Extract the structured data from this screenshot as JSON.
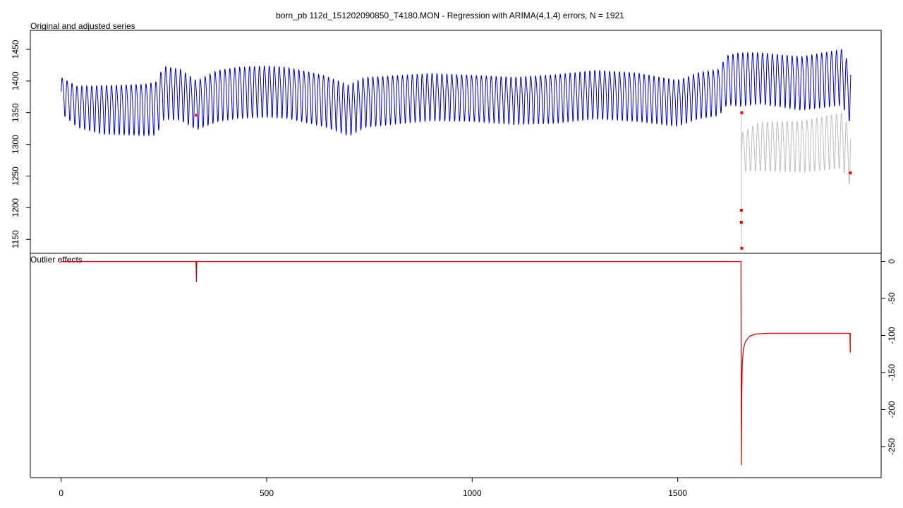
{
  "title": "born_pb 112d_151202090850_T4180.MON - Regression with ARIMA(4,1,4) errors, N = 1921",
  "chart_data": [
    {
      "id": "top",
      "type": "line",
      "title": "Original and adjusted series",
      "xlim": [
        -75,
        1995
      ],
      "ylim": [
        1128,
        1480
      ],
      "y_ticks": [
        1150,
        1200,
        1250,
        1300,
        1350,
        1400,
        1450
      ],
      "y_tick_labels": [
        "1150",
        "1200",
        "1250",
        "1300",
        "1350",
        "1400",
        "1450"
      ],
      "grid": false,
      "series": [
        {
          "role": "original",
          "color": "#0000cc",
          "period": 12,
          "amplitude_points": [
            [
              0,
              28
            ],
            [
              100,
              38
            ],
            [
              200,
              40
            ],
            [
              240,
              42
            ],
            [
              330,
              38
            ],
            [
              380,
              40
            ],
            [
              500,
              40
            ],
            [
              620,
              40
            ],
            [
              700,
              40
            ],
            [
              800,
              38
            ],
            [
              1000,
              36
            ],
            [
              1200,
              38
            ],
            [
              1400,
              38
            ],
            [
              1500,
              36
            ],
            [
              1600,
              36
            ],
            [
              1650,
              42
            ],
            [
              1700,
              40
            ],
            [
              1921,
              44
            ]
          ],
          "level_points": [
            [
              0,
              1380
            ],
            [
              40,
              1362
            ],
            [
              100,
              1358
            ],
            [
              200,
              1358
            ],
            [
              230,
              1360
            ],
            [
              250,
              1385
            ],
            [
              290,
              1382
            ],
            [
              330,
              1365
            ],
            [
              380,
              1380
            ],
            [
              430,
              1385
            ],
            [
              500,
              1387
            ],
            [
              550,
              1385
            ],
            [
              640,
              1372
            ],
            [
              700,
              1357
            ],
            [
              740,
              1370
            ],
            [
              800,
              1373
            ],
            [
              900,
              1378
            ],
            [
              1000,
              1376
            ],
            [
              1100,
              1372
            ],
            [
              1200,
              1375
            ],
            [
              1300,
              1382
            ],
            [
              1400,
              1378
            ],
            [
              1500,
              1368
            ],
            [
              1550,
              1380
            ],
            [
              1600,
              1385
            ],
            [
              1620,
              1405
            ],
            [
              1700,
              1408
            ],
            [
              1800,
              1400
            ],
            [
              1900,
              1410
            ],
            [
              1921,
              1380
            ]
          ]
        },
        {
          "role": "adjusted",
          "color": "#bebebe",
          "start": 1655,
          "end": 1921,
          "period": 12,
          "amplitude_points": [
            [
              1655,
              30
            ],
            [
              1700,
              38
            ],
            [
              1800,
              40
            ],
            [
              1921,
              44
            ]
          ],
          "level_points": [
            [
              1655,
              1290
            ],
            [
              1700,
              1300
            ],
            [
              1800,
              1300
            ],
            [
              1900,
              1310
            ],
            [
              1921,
              1280
            ]
          ]
        }
      ],
      "outlier_markers": [
        {
          "x": 329,
          "y": 1346
        },
        {
          "x": 1656,
          "y": 1350
        },
        {
          "x": 1655,
          "y": 1196
        },
        {
          "x": 1655,
          "y": 1177
        },
        {
          "x": 1656,
          "y": 1136
        },
        {
          "x": 1920,
          "y": 1255
        }
      ]
    },
    {
      "id": "bottom",
      "type": "line",
      "title": "Outlier effects",
      "xlim": [
        -75,
        1995
      ],
      "ylim": [
        -292,
        11
      ],
      "x_ticks": [
        0,
        500,
        1000,
        1500
      ],
      "x_tick_labels": [
        "0",
        "500",
        "1000",
        "1500"
      ],
      "y_ticks": [
        0,
        -50,
        -100,
        -150,
        -200,
        -250
      ],
      "y_tick_labels": [
        "0",
        "-50",
        "-100",
        "-150",
        "-200",
        "-250"
      ],
      "grid": false,
      "series": [
        {
          "role": "outlier-effects",
          "color": "#cc0000",
          "points": [
            [
              0,
              0
            ],
            [
              328,
              0
            ],
            [
              329,
              -28
            ],
            [
              330,
              0
            ],
            [
              1654,
              0
            ],
            [
              1654,
              -15
            ],
            [
              1655,
              -275
            ],
            [
              1656,
              -180
            ],
            [
              1657,
              -140
            ],
            [
              1660,
              -118
            ],
            [
              1665,
              -108
            ],
            [
              1675,
              -101
            ],
            [
              1690,
              -98
            ],
            [
              1720,
              -97
            ],
            [
              1919,
              -97
            ],
            [
              1920,
              -123
            ],
            [
              1920,
              -97
            ]
          ]
        }
      ]
    }
  ]
}
